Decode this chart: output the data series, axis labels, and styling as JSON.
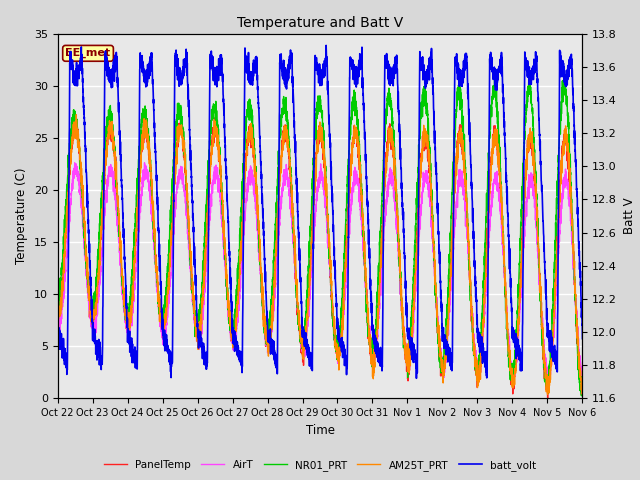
{
  "title": "Temperature and Batt V",
  "xlabel": "Time",
  "ylabel_left": "Temperature (C)",
  "ylabel_right": "Batt V",
  "annotation_text": "EE_met",
  "annotation_color": "#8B0000",
  "annotation_bg": "#FFFFA0",
  "xlim": [
    0,
    15
  ],
  "ylim_left": [
    0,
    35
  ],
  "ylim_right": [
    11.6,
    13.8
  ],
  "xtick_labels": [
    "Oct 22",
    "Oct 23",
    "Oct 24",
    "Oct 25",
    "Oct 26",
    "Oct 27",
    "Oct 28",
    "Oct 29",
    "Oct 30",
    "Oct 31",
    "Nov 1",
    "Nov 2",
    "Nov 3",
    "Nov 4",
    "Nov 5",
    "Nov 6"
  ],
  "xtick_positions": [
    0,
    1,
    2,
    3,
    4,
    5,
    6,
    7,
    8,
    9,
    10,
    11,
    12,
    13,
    14,
    15
  ],
  "ytick_left": [
    0,
    5,
    10,
    15,
    20,
    25,
    30,
    35
  ],
  "ytick_right": [
    11.6,
    11.8,
    12.0,
    12.2,
    12.4,
    12.6,
    12.8,
    13.0,
    13.2,
    13.4,
    13.6,
    13.8
  ],
  "fig_bg": "#D8D8D8",
  "plot_bg": "#E8E8E8",
  "series": {
    "PanelTemp": {
      "color": "#FF2222",
      "lw": 1.0
    },
    "AirT": {
      "color": "#FF44FF",
      "lw": 1.0
    },
    "NR01_PRT": {
      "color": "#00CC00",
      "lw": 1.0
    },
    "AM25T_PRT": {
      "color": "#FF8800",
      "lw": 1.0
    },
    "batt_volt": {
      "color": "#0000EE",
      "lw": 1.2
    }
  }
}
